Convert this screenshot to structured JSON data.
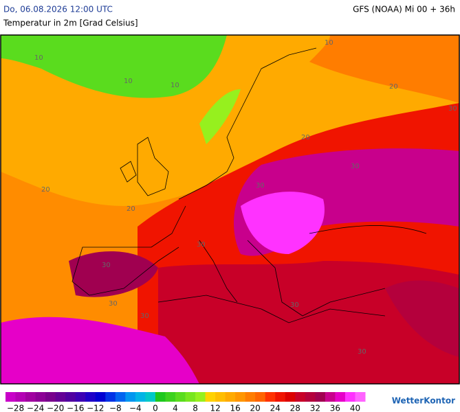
{
  "header": {
    "date": "Do, 06.08.2026 12:00 UTC",
    "model": "GFS (NOAA) Mi 00 + 36h",
    "subtitle": "Temperatur in 2m [Grad Celsius]"
  },
  "map": {
    "contour_labels": [
      "10",
      "10",
      "10",
      "10",
      "20",
      "20",
      "20",
      "20",
      "30",
      "30",
      "30",
      "30",
      "30",
      "30",
      "30",
      "30",
      "30"
    ]
  },
  "legend": {
    "lim": [
      -30,
      42
    ],
    "colors": [
      "#c800c8",
      "#b400b4",
      "#a000a0",
      "#8c0096",
      "#78008c",
      "#640096",
      "#5000a0",
      "#3c00b4",
      "#1e00c8",
      "#0000d2",
      "#0032e6",
      "#0064f0",
      "#0096f0",
      "#00b4e6",
      "#00c8c8",
      "#1ec81e",
      "#3cd21e",
      "#5adc1e",
      "#78e61e",
      "#96f01e",
      "#ffd200",
      "#ffbe00",
      "#ffaa00",
      "#ff9600",
      "#ff7d00",
      "#ff6400",
      "#ff3200",
      "#f01400",
      "#dc0000",
      "#c80028",
      "#b4003c",
      "#a00050",
      "#c8008c",
      "#e600c8",
      "#ff32ff",
      "#ff64ff"
    ],
    "ticks": [
      {
        "value": -28,
        "label": "−28"
      },
      {
        "value": -24,
        "label": "−24"
      },
      {
        "value": -20,
        "label": "−20"
      },
      {
        "value": -16,
        "label": "−16"
      },
      {
        "value": -12,
        "label": "−12"
      },
      {
        "value": -8,
        "label": "−8"
      },
      {
        "value": -4,
        "label": "−4"
      },
      0,
      4,
      8,
      12,
      16,
      20,
      24,
      28,
      32,
      36,
      40
    ]
  },
  "logo": "WetterKontor"
}
